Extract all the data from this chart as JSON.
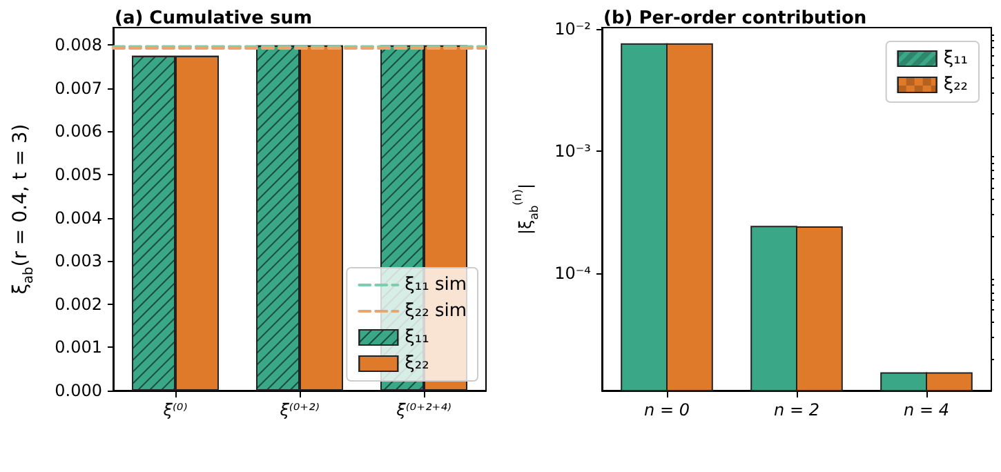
{
  "chart_data": [
    {
      "type": "bar",
      "title": "(a) Cumulative sum",
      "ylabel": "ξ$_{ab}$(r = 0.4, t = 3)",
      "categories": [
        "ξ⁽⁰⁾",
        "ξ⁽⁰⁺²⁾",
        "ξ⁽⁰⁺²⁺⁴⁾"
      ],
      "series": [
        {
          "name": "ξ₁₁",
          "color": "#3aa886",
          "values": [
            0.00775,
            0.00799,
            0.00799
          ]
        },
        {
          "name": "ξ₂₂",
          "color": "#e07a2b",
          "values": [
            0.00775,
            0.00799,
            0.00799
          ]
        }
      ],
      "ylim": [
        0,
        0.0084
      ],
      "yticks": [
        {
          "value": 0,
          "label": "0.000"
        },
        {
          "value": 0.001,
          "label": "0.001"
        },
        {
          "value": 0.002,
          "label": "0.002"
        },
        {
          "value": 0.003,
          "label": "0.003"
        },
        {
          "value": 0.004,
          "label": "0.004"
        },
        {
          "value": 0.005,
          "label": "0.005"
        },
        {
          "value": 0.006,
          "label": "0.006"
        },
        {
          "value": 0.007,
          "label": "0.007"
        },
        {
          "value": 0.008,
          "label": "0.008"
        }
      ],
      "ref_lines": [
        {
          "axis": "y",
          "value": 0.00796,
          "label": "ξ₁₁ sim",
          "color": "#80ccaf",
          "line_style": "dashed"
        },
        {
          "axis": "y",
          "value": 0.00792,
          "label": "ξ₂₂ sim",
          "color": "#eba46c",
          "line_style": "dashed"
        }
      ],
      "legend": "bottom right",
      "grid": false
    },
    {
      "type": "bar",
      "title": "(b) Per-order contribution",
      "ylabel": "|ξ$_{ab}$$^{(n)}$|",
      "categories": [
        "n = 0",
        "n = 2",
        "n = 4"
      ],
      "series": [
        {
          "name": "ξ₁₁",
          "color": "#3aa886",
          "values": [
            0.0075,
            0.000241,
            1.53e-05
          ]
        },
        {
          "name": "ξ₂₂",
          "color": "#e07a2b",
          "values": [
            0.0075,
            0.000239,
            1.53e-05
          ]
        }
      ],
      "ylim": [
        1.1e-05,
        0.0102
      ],
      "log": true,
      "yticks": [
        {
          "value": 0.0001,
          "label": "10⁻⁴"
        },
        {
          "value": 0.001,
          "label": "10⁻³"
        },
        {
          "value": 0.01,
          "label": "10⁻²"
        },
        {
          "value": 2e-05,
          "label": null
        },
        {
          "value": 3e-05,
          "label": null
        },
        {
          "value": 4e-05,
          "label": null
        },
        {
          "value": 5e-05,
          "label": null
        },
        {
          "value": 6e-05,
          "label": null
        },
        {
          "value": 7e-05,
          "label": null
        },
        {
          "value": 8e-05,
          "label": null
        },
        {
          "value": 9e-05,
          "label": null
        },
        {
          "value": 0.0002,
          "label": null
        },
        {
          "value": 0.0003,
          "label": null
        },
        {
          "value": 0.0004,
          "label": null
        },
        {
          "value": 0.0005,
          "label": null
        },
        {
          "value": 0.0006,
          "label": null
        },
        {
          "value": 0.0007,
          "label": null
        },
        {
          "value": 0.0008,
          "label": null
        },
        {
          "value": 0.0009,
          "label": null
        },
        {
          "value": 0.002,
          "label": null
        },
        {
          "value": 0.003,
          "label": null
        },
        {
          "value": 0.004,
          "label": null
        },
        {
          "value": 0.005,
          "label": null
        },
        {
          "value": 0.006,
          "label": null
        },
        {
          "value": 0.007,
          "label": null
        },
        {
          "value": 0.008,
          "label": null
        },
        {
          "value": 0.009,
          "label": null
        }
      ],
      "legend": "top right",
      "grid": false
    }
  ]
}
